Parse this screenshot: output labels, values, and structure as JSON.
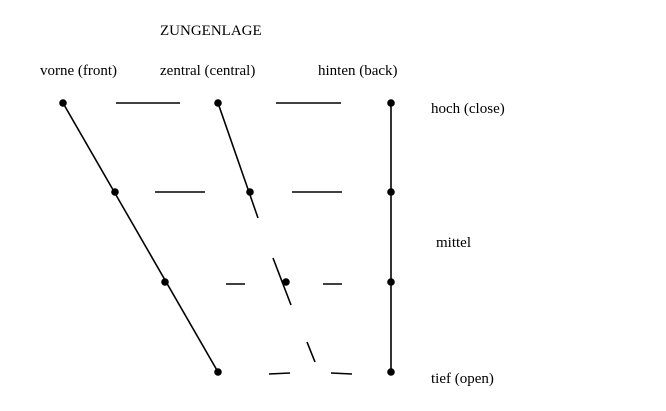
{
  "title": "ZUNGENLAGE",
  "columns": {
    "front": "vorne (front)",
    "central": "zentral (central)",
    "back": "hinten (back)"
  },
  "rows": {
    "close": "hoch (close)",
    "mid": "mittel",
    "open": "tief (open)"
  },
  "ink_color": "#000000"
}
